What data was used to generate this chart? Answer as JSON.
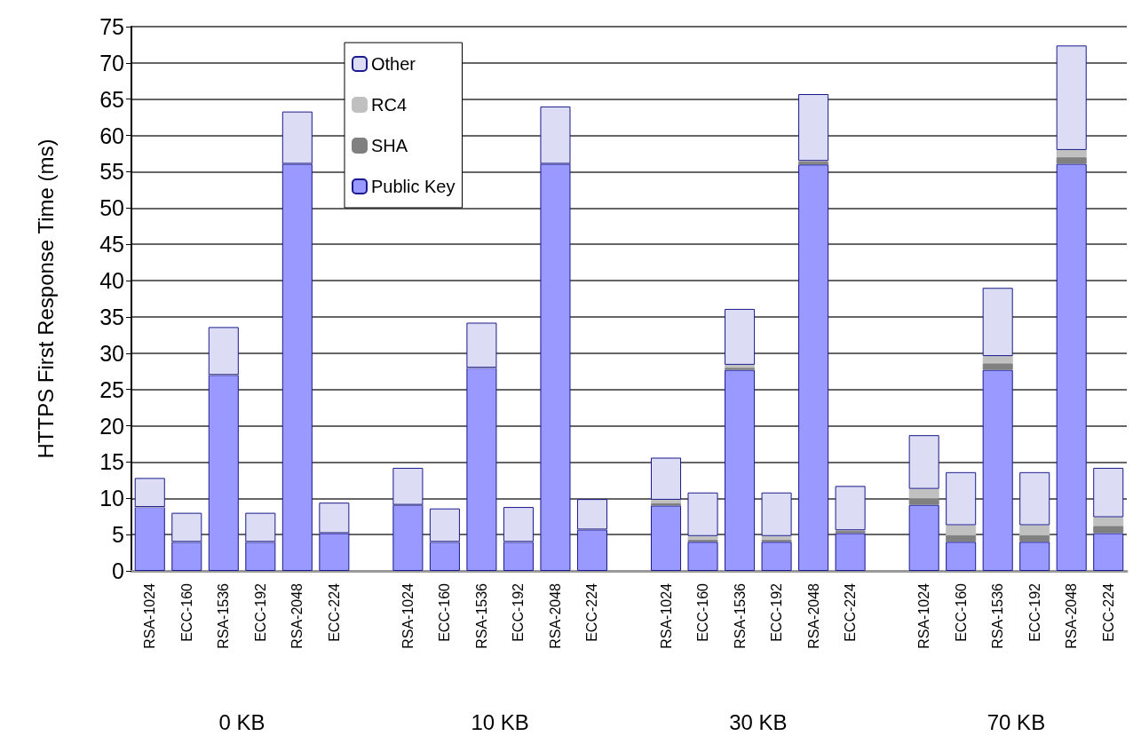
{
  "chart_data": {
    "type": "bar",
    "stacked": true,
    "ylabel": "HTTPS First Response Time (ms)",
    "categories": [
      "RSA-1024",
      "ECC-160",
      "RSA-1536",
      "ECC-192",
      "RSA-2048",
      "ECC-224",
      null,
      "RSA-1024",
      "ECC-160",
      "RSA-1536",
      "ECC-192",
      "RSA-2048",
      "ECC-224",
      null,
      "RSA-1024",
      "ECC-160",
      "RSA-1536",
      "ECC-192",
      "RSA-2048",
      "ECC-224",
      null,
      "RSA-1024",
      "ECC-160",
      "RSA-1536",
      "ECC-192",
      "RSA-2048",
      "ECC-224"
    ],
    "series": [
      {
        "name": "Public Key",
        "color": "#9999ff",
        "values": [
          8.8,
          4.0,
          27.0,
          4.0,
          56.1,
          5.2,
          null,
          9.1,
          4.0,
          28.0,
          4.0,
          56.1,
          5.7,
          null,
          9.0,
          4.0,
          27.7,
          4.0,
          56.0,
          5.2,
          null,
          9.1,
          4.0,
          27.7,
          4.0,
          56.1,
          5.2
        ]
      },
      {
        "name": "SHA",
        "color": "#808080",
        "values": [
          0,
          0,
          0,
          0,
          0,
          0,
          null,
          0,
          0,
          0,
          0,
          0,
          0,
          null,
          0.3,
          0.3,
          0.3,
          0.3,
          0.4,
          0.3,
          null,
          0.9,
          0.9,
          0.9,
          0.9,
          0.9,
          1.0
        ]
      },
      {
        "name": "RC4",
        "color": "#c0c0c0",
        "values": [
          0,
          0,
          0,
          0,
          0,
          0,
          null,
          0,
          0,
          0,
          0,
          0,
          0,
          null,
          0.5,
          0.5,
          0.4,
          0.5,
          0.1,
          0.1,
          null,
          1.3,
          1.4,
          1.0,
          1.4,
          1.0,
          1.2
        ]
      },
      {
        "name": "Other",
        "color": "#dcdcf4",
        "values": [
          4.0,
          4.0,
          6.6,
          4.0,
          7.2,
          4.2,
          null,
          5.1,
          4.6,
          6.2,
          4.8,
          7.9,
          4.2,
          null,
          5.8,
          6.0,
          7.7,
          6.0,
          9.2,
          6.1,
          null,
          7.4,
          7.3,
          9.4,
          7.3,
          14.4,
          6.8
        ]
      }
    ],
    "ylim": [
      0,
      75
    ],
    "yticks": [
      0,
      5,
      10,
      15,
      20,
      25,
      30,
      35,
      40,
      45,
      50,
      55,
      60,
      65,
      70,
      75
    ],
    "grid": "y",
    "legend": "top left",
    "annotations": [
      "0 KB",
      "10 KB",
      "30 KB",
      "70 KB"
    ]
  }
}
